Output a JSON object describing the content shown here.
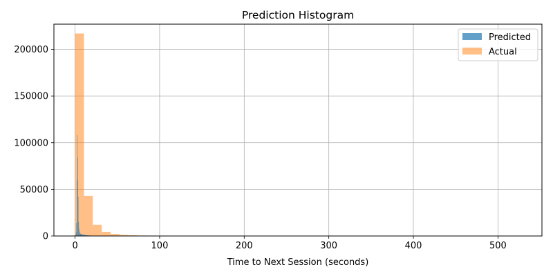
{
  "chart_data": {
    "type": "histogram",
    "title": "Prediction Histogram",
    "xlabel": "Time to Next Session (seconds)",
    "ylabel": "",
    "xlim": [
      -25,
      552
    ],
    "ylim": [
      0,
      227000
    ],
    "xticks": [
      0,
      100,
      200,
      300,
      400,
      500
    ],
    "yticks": [
      0,
      50000,
      100000,
      150000,
      200000
    ],
    "grid": true,
    "legend_position": "top-right",
    "series": [
      {
        "name": "Predicted",
        "color": "#1f77b4",
        "opacity": 0.7,
        "bin_edges": [
          0,
          1,
          1.5,
          2,
          2.5,
          3,
          3.5,
          4,
          4.5,
          5,
          5.5,
          6,
          7,
          8,
          9,
          10,
          12,
          14,
          16,
          18,
          20,
          25,
          30
        ],
        "counts": [
          1000,
          4000,
          14000,
          60000,
          108000,
          84000,
          42000,
          15000,
          8000,
          5000,
          3500,
          2500,
          2000,
          1800,
          1500,
          1200,
          900,
          700,
          500,
          400,
          300,
          100
        ]
      },
      {
        "name": "Actual",
        "color": "#ff7f0e",
        "opacity": 0.5,
        "bin_edges": [
          0,
          10.5,
          21,
          31.5,
          42,
          52.5,
          63,
          73.5,
          84,
          94.5,
          105,
          115.5,
          126
        ],
        "counts": [
          217000,
          43000,
          12000,
          4500,
          2200,
          1200,
          800,
          500,
          400,
          250,
          150,
          80
        ]
      }
    ]
  }
}
